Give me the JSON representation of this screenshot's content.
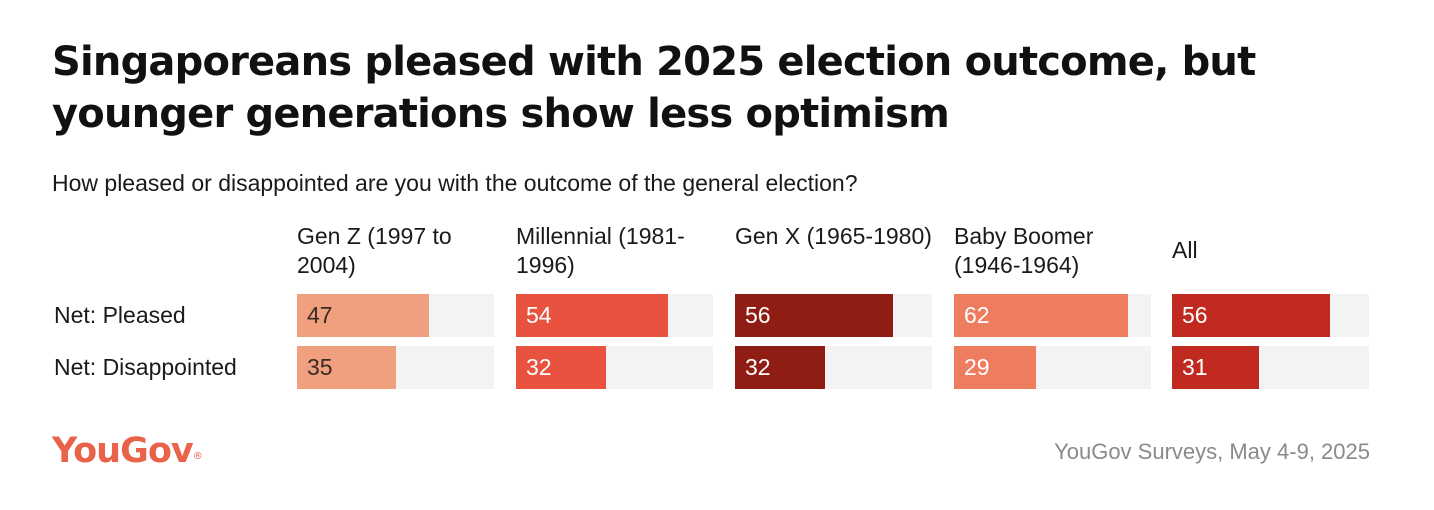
{
  "title": "Singaporeans pleased with 2025 election outcome, but younger generations show less optimism",
  "subtitle": "How pleased or disappointed are you with the outcome of the general election?",
  "logo_text": "YouGov",
  "logo_mark": "®",
  "source": "YouGov Surveys, May 4-9, 2025",
  "colors": {
    "track": "#f3f3f3",
    "gen_z": "#f0a07f",
    "millennial": "#e8523e",
    "gen_x": "#8f1d14",
    "baby_boomer": "#ee7d60",
    "all": "#c12a20",
    "logo": "#e9624a"
  },
  "chart_data": {
    "type": "bar",
    "orientation": "horizontal",
    "layout": "small-multiples",
    "rows": [
      "Net: Pleased",
      "Net: Disappointed"
    ],
    "groups": [
      {
        "name": "Gen Z (1997 to 2004)",
        "values": [
          47,
          35
        ],
        "color": "#f0a07f",
        "label_color": "#3a2a24"
      },
      {
        "name": "Millennial (1981-1996)",
        "values": [
          54,
          32
        ],
        "color": "#e8523e",
        "label_color": "#ffffff"
      },
      {
        "name": "Gen X (1965-1980)",
        "values": [
          56,
          32
        ],
        "color": "#8f1d14",
        "label_color": "#ffffff"
      },
      {
        "name": "Baby Boomer (1946-1964)",
        "values": [
          62,
          29
        ],
        "color": "#ee7d60",
        "label_color": "#ffffff"
      },
      {
        "name": "All",
        "values": [
          56,
          31
        ],
        "color": "#c12a20",
        "label_color": "#ffffff"
      }
    ],
    "xlim": [
      0,
      70
    ],
    "grid": false,
    "legend": "none"
  }
}
